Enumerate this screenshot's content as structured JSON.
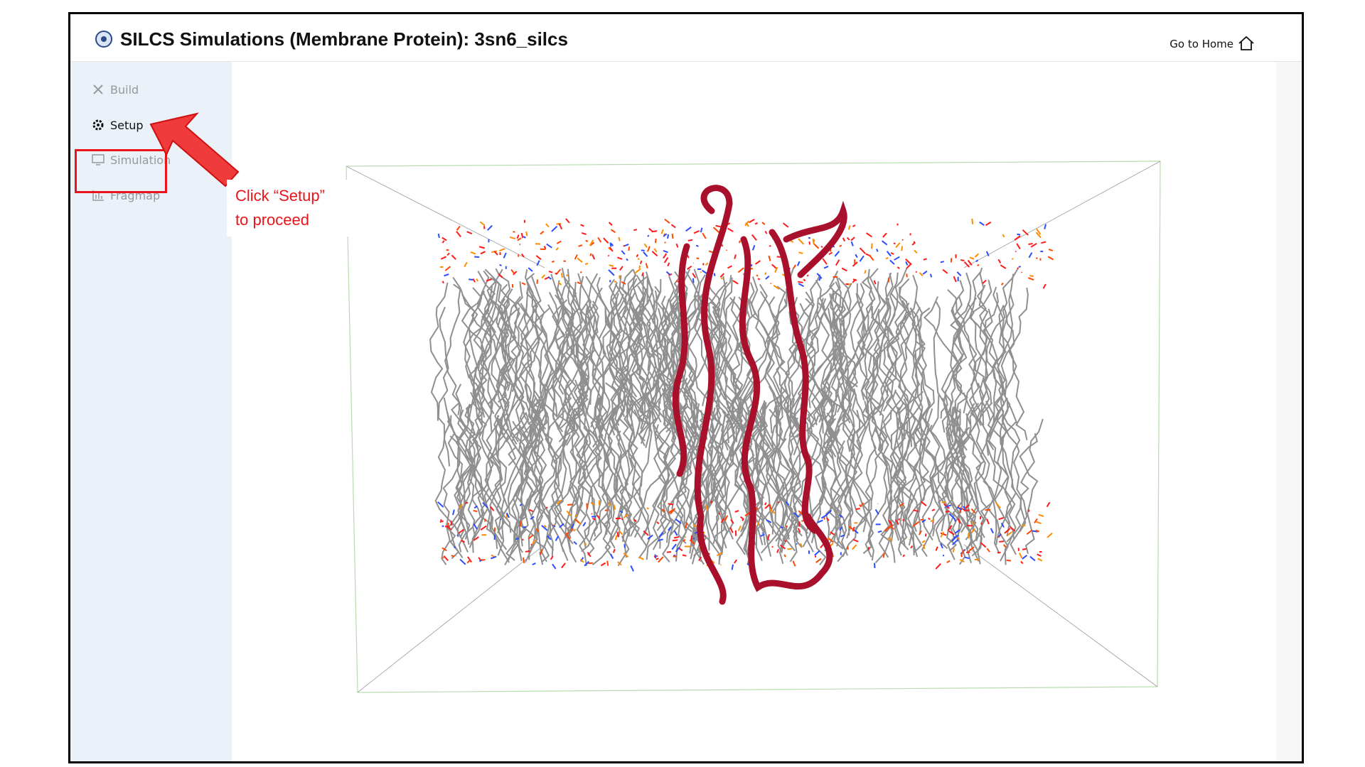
{
  "header": {
    "title": "SILCS Simulations (Membrane Protein): 3sn6_silcs",
    "home_link": "Go to Home"
  },
  "sidebar": {
    "items": [
      "Build",
      "Setup",
      "Simulation",
      "Fragmap"
    ]
  },
  "annotation": {
    "lines": [
      "Click “Setup”",
      "to proceed"
    ]
  }
}
